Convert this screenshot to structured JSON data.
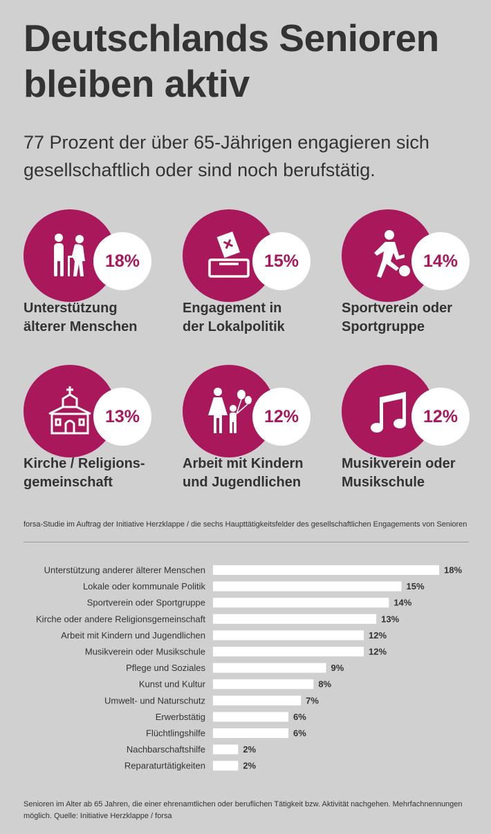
{
  "title": "Deutschlands Senioren bleiben aktiv",
  "subtitle": "77 Prozent der über 65-Jährigen engagieren sich gesellschaftlich oder sind noch berufstätig.",
  "colors": {
    "accent": "#a8185a",
    "background": "#d0d0d0",
    "bar": "#ffffff",
    "text": "#333333"
  },
  "highlights": [
    {
      "icon": "elderly-people-icon",
      "value": "18%",
      "label": "Unterstützung\nälterer Menschen"
    },
    {
      "icon": "ballot-box-icon",
      "value": "15%",
      "label": "Engagement in\nder Lokalpolitik"
    },
    {
      "icon": "soccer-player-icon",
      "value": "14%",
      "label": "Sportverein oder\nSportgruppe"
    },
    {
      "icon": "church-icon",
      "value": "13%",
      "label": "Kirche / Religions-\ngemeinschaft"
    },
    {
      "icon": "mother-child-balloons-icon",
      "value": "12%",
      "label": "Arbeit mit Kindern\nund Jugendlichen"
    },
    {
      "icon": "music-note-icon",
      "value": "12%",
      "label": "Musikverein oder\nMusikschule"
    }
  ],
  "caption": "forsa-Studie im Auftrag der Initiative Herzklappe / die sechs Haupttätigkeitsfelder des gesellschaftlichen Engagements von Senioren",
  "chart_data": {
    "type": "bar",
    "orientation": "horizontal",
    "categories": [
      "Unterstützung anderer älterer Menschen",
      "Lokale oder kommunale Politik",
      "Sportverein oder Sportgruppe",
      "Kirche oder andere Religionsgemeinschaft",
      "Arbeit mit Kindern und Jugendlichen",
      "Musikverein oder Musikschule",
      "Pflege und Soziales",
      "Kunst und Kultur",
      "Umwelt- und Naturschutz",
      "Erwerbstätig",
      "Flüchtlingshilfe",
      "Nachbarschaftshilfe",
      "Reparaturtätigkeiten"
    ],
    "values": [
      18,
      15,
      14,
      13,
      12,
      12,
      9,
      8,
      7,
      6,
      6,
      2,
      2
    ],
    "value_labels": [
      "18%",
      "15%",
      "14%",
      "13%",
      "12%",
      "12%",
      "9%",
      "8%",
      "7%",
      "6%",
      "6%",
      "2%",
      "2%"
    ],
    "unit": "%",
    "xlim": [
      0,
      18
    ],
    "grid": false,
    "legend": "none"
  },
  "footnote": "Senioren im Alter ab 65 Jahren, die einer ehrenamtlichen oder beruflichen Tätigkeit bzw.  Aktivität nachgehen. Mehrfachnennungen möglich. Quelle: Initiative Herzklappe / forsa"
}
